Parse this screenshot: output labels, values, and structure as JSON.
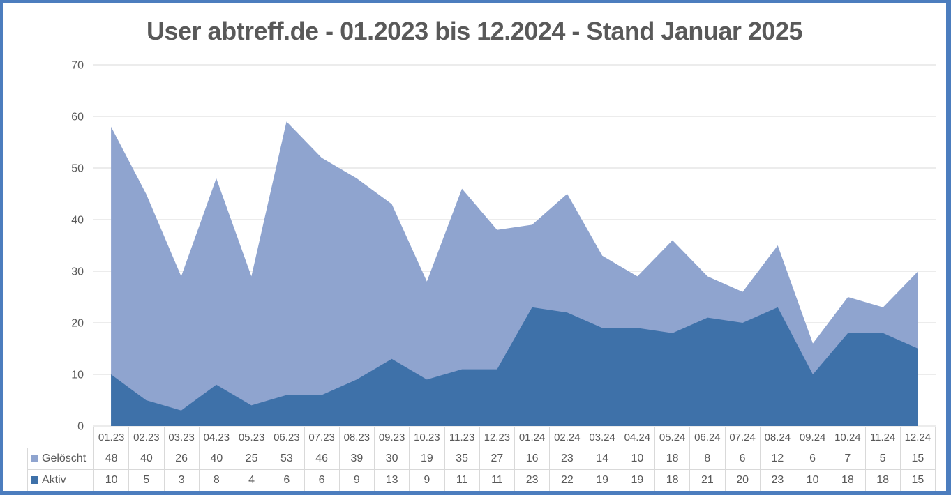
{
  "window": {
    "frame_color": "#4C7DBE",
    "background_color": "#FFFFFF"
  },
  "styles": {
    "text_color": "#595959",
    "gridline_color": "#D9D9D9",
    "table_border_color": "#D9D9D9"
  },
  "chart_data": {
    "type": "area",
    "stacked": true,
    "title": "User abtreff.de - 01.2023 bis 12.2024 - Stand Januar 2025",
    "xlabel": "",
    "ylabel": "",
    "ylim": [
      0,
      70
    ],
    "yticks": [
      0,
      10,
      20,
      30,
      40,
      50,
      60,
      70
    ],
    "grid": true,
    "legend_position": "data-table-left",
    "data_table_shown": true,
    "categories": [
      "01.23",
      "02.23",
      "03.23",
      "04.23",
      "05.23",
      "06.23",
      "07.23",
      "08.23",
      "09.23",
      "10.23",
      "11.23",
      "12.23",
      "01.24",
      "02.24",
      "03.24",
      "04.24",
      "05.24",
      "06.24",
      "07.24",
      "08.24",
      "09.24",
      "10.24",
      "11.24",
      "12.24"
    ],
    "series": [
      {
        "name": "Gelöscht",
        "color": "#8FA4CF",
        "stack_order": "top",
        "values": [
          48,
          40,
          26,
          40,
          25,
          53,
          46,
          39,
          30,
          19,
          35,
          27,
          16,
          23,
          14,
          10,
          18,
          8,
          6,
          12,
          6,
          7,
          5,
          15
        ]
      },
      {
        "name": "Aktiv",
        "color": "#3E71A9",
        "stack_order": "bottom",
        "values": [
          10,
          5,
          3,
          8,
          4,
          6,
          6,
          9,
          13,
          9,
          11,
          11,
          23,
          22,
          19,
          19,
          18,
          21,
          20,
          23,
          10,
          18,
          18,
          15
        ]
      }
    ]
  }
}
